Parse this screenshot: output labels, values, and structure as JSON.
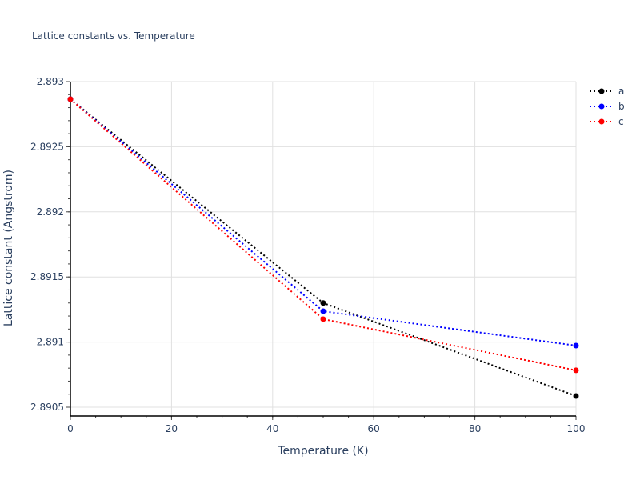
{
  "title": "Lattice constants vs. Temperature",
  "chart_data": {
    "type": "line",
    "title": "Lattice constants vs. Temperature",
    "xlabel": "Temperature (K)",
    "ylabel": "Lattice constant (Angstrom)",
    "x": [
      0,
      50,
      100
    ],
    "xlim": [
      0,
      100
    ],
    "ylim": [
      2.89048,
      2.893
    ],
    "xticks": [
      "0",
      "20",
      "40",
      "60",
      "80",
      "100"
    ],
    "yticks": [
      "2.8905",
      "2.891",
      "2.8915",
      "2.892",
      "2.8925",
      "2.893"
    ],
    "grid": true,
    "legend_position": "top-right",
    "series": [
      {
        "name": "a",
        "color": "#000000",
        "values": [
          2.892865,
          2.8913,
          2.890586
        ]
      },
      {
        "name": "b",
        "color": "#0000ff",
        "values": [
          2.892865,
          2.891237,
          2.890973
        ]
      },
      {
        "name": "c",
        "color": "#ff0000",
        "values": [
          2.892865,
          2.891176,
          2.890783
        ]
      }
    ]
  }
}
